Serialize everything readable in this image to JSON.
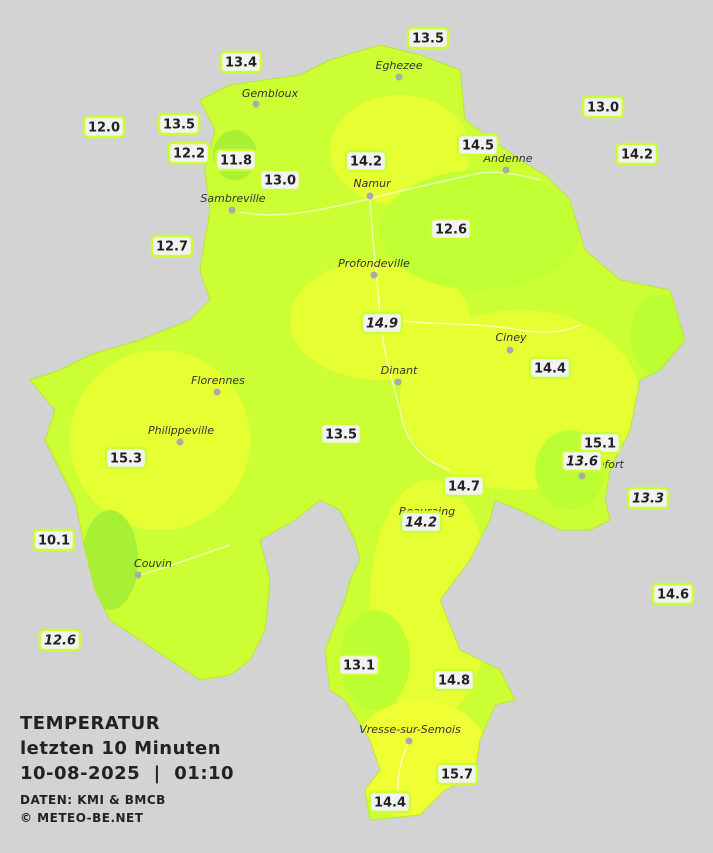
{
  "title": {
    "lines": [
      "TEMPERATUR",
      "letzten 10 Minuten",
      "10-08-2025  |  01:10"
    ]
  },
  "credits": [
    "DATEN: KMI & BMCB",
    "© METEO-BE.NET"
  ],
  "cities": [
    "Eghezee",
    "Gembloux",
    "Namur",
    "Andenne",
    "Sambreville",
    "Profondeville",
    "Ciney",
    "Dinant",
    "Florennes",
    "Philippeville",
    "Rochefort",
    "Beauraing",
    "Couvin",
    "Vresse-sur-Semois"
  ],
  "stations": [
    {
      "value": "13.5"
    },
    {
      "value": "13.4"
    },
    {
      "value": "12.0"
    },
    {
      "value": "13.5"
    },
    {
      "value": "13.0"
    },
    {
      "value": "12.2"
    },
    {
      "value": "11.8"
    },
    {
      "value": "14.5"
    },
    {
      "value": "14.2"
    },
    {
      "value": "14.2"
    },
    {
      "value": "13.0"
    },
    {
      "value": "12.6"
    },
    {
      "value": "12.7"
    },
    {
      "value": "14.9",
      "italic": true
    },
    {
      "value": "14.4"
    },
    {
      "value": "13.5"
    },
    {
      "value": "15.1"
    },
    {
      "value": "13.6",
      "italic": true
    },
    {
      "value": "15.3"
    },
    {
      "value": "14.7"
    },
    {
      "value": "13.3",
      "italic": true
    },
    {
      "value": "14.2",
      "italic": true
    },
    {
      "value": "10.1"
    },
    {
      "value": "14.6"
    },
    {
      "value": "12.6",
      "italic": true
    },
    {
      "value": "13.1"
    },
    {
      "value": "14.8"
    },
    {
      "value": "15.7"
    },
    {
      "value": "14.4"
    }
  ]
}
